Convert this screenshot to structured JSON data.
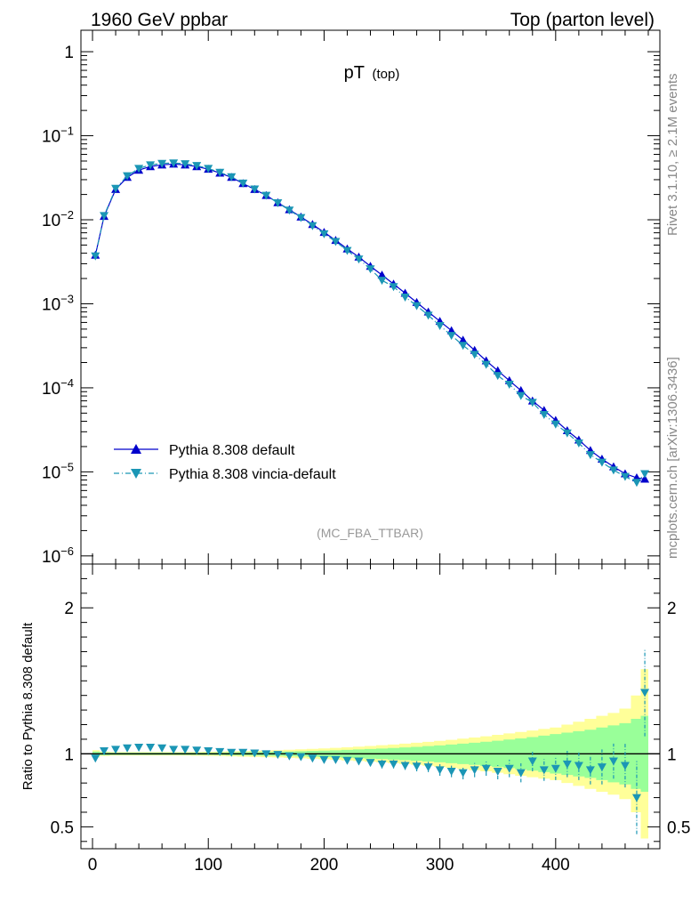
{
  "header": {
    "left": "1960 GeV ppbar",
    "right": "Top (parton level)"
  },
  "side_text": {
    "rivet": "Rivet 3.1.10, ≥ 2.1M events",
    "mcplots": "mcplots.cern.ch [arXiv:1306.3436]"
  },
  "chart_data": {
    "type": "line",
    "title_main": "pT",
    "title_sub": "(top)",
    "analysis_label": "(MC_FBA_TTBAR)",
    "main_panel": {
      "yscale": "log",
      "xlim": [
        -10,
        490
      ],
      "ylim": [
        8e-07,
        1.8
      ],
      "y_ticks": [
        {
          "value": 1,
          "base": "1",
          "exp": ""
        },
        {
          "value": 0.1,
          "base": "10",
          "exp": "−1"
        },
        {
          "value": 0.01,
          "base": "10",
          "exp": "−2"
        },
        {
          "value": 0.001,
          "base": "10",
          "exp": "−3"
        },
        {
          "value": 0.0001,
          "base": "10",
          "exp": "−4"
        },
        {
          "value": 1e-05,
          "base": "10",
          "exp": "−5"
        },
        {
          "value": 1e-06,
          "base": "10",
          "exp": "−6"
        }
      ]
    },
    "ratio_panel": {
      "ylabel": "Ratio to Pythia 8.308 default",
      "ylim": [
        0.35,
        2.3
      ],
      "y_ticks": [
        {
          "value": 2,
          "label": "2"
        },
        {
          "value": 1,
          "label": "1"
        },
        {
          "value": 0.5,
          "label": "0.5"
        }
      ],
      "x_ticks": [
        {
          "value": 0,
          "label": "0"
        },
        {
          "value": 100,
          "label": "100"
        },
        {
          "value": 200,
          "label": "200"
        },
        {
          "value": 300,
          "label": "300"
        },
        {
          "value": 400,
          "label": "400"
        }
      ]
    },
    "x": [
      2.5,
      10,
      20,
      30,
      40,
      50,
      60,
      70,
      80,
      90,
      100,
      110,
      120,
      130,
      140,
      150,
      160,
      170,
      180,
      190,
      200,
      210,
      220,
      230,
      240,
      250,
      260,
      270,
      280,
      290,
      300,
      310,
      320,
      330,
      340,
      350,
      360,
      370,
      380,
      390,
      400,
      410,
      420,
      430,
      440,
      450,
      460,
      470,
      477
    ],
    "series": [
      {
        "name": "Pythia 8.308 default",
        "color": "#0000cc",
        "marker": "triangle-up",
        "line": "solid",
        "values": [
          0.0038,
          0.011,
          0.023,
          0.032,
          0.039,
          0.043,
          0.045,
          0.046,
          0.045,
          0.043,
          0.04,
          0.036,
          0.032,
          0.027,
          0.023,
          0.0195,
          0.016,
          0.0132,
          0.0108,
          0.0088,
          0.0071,
          0.0057,
          0.0045,
          0.0036,
          0.0028,
          0.0022,
          0.00172,
          0.00134,
          0.00104,
          0.0008,
          0.00062,
          0.00048,
          0.00037,
          0.00028,
          0.00021,
          0.00016,
          0.000122,
          9.3e-05,
          7e-05,
          5.4e-05,
          4.1e-05,
          3.1e-05,
          2.4e-05,
          1.8e-05,
          1.42e-05,
          1.15e-05,
          9.5e-06,
          8.5e-06,
          8.2e-06
        ]
      },
      {
        "name": "Pythia 8.308 vincia-default",
        "color": "#1b96b5",
        "marker": "triangle-down",
        "line": "dash-dot",
        "values": [
          0.0037,
          0.0112,
          0.0236,
          0.0333,
          0.0408,
          0.045,
          0.0468,
          0.0474,
          0.0463,
          0.0441,
          0.0408,
          0.0366,
          0.0324,
          0.0273,
          0.0232,
          0.0195,
          0.0159,
          0.013,
          0.0106,
          0.0085,
          0.0068,
          0.0055,
          0.0043,
          0.0034,
          0.0026,
          0.0019,
          0.0016,
          0.0012,
          0.00095,
          0.00073,
          0.00055,
          0.00042,
          0.00032,
          0.00025,
          0.00019,
          0.00014,
          0.00011,
          8.1e-05,
          6.7e-05,
          4.8e-05,
          3.7e-05,
          2.9e-05,
          2.2e-05,
          1.6e-05,
          1.3e-05,
          1.05e-05,
          8.8e-06,
          7.5e-06,
          9.5e-06
        ]
      }
    ],
    "ratio_values": [
      0.97,
      1.02,
      1.03,
      1.04,
      1.045,
      1.045,
      1.04,
      1.03,
      1.03,
      1.025,
      1.02,
      1.015,
      1.01,
      1.01,
      1.005,
      1.0,
      0.995,
      0.985,
      0.98,
      0.97,
      0.96,
      0.96,
      0.955,
      0.95,
      0.94,
      0.93,
      0.93,
      0.92,
      0.915,
      0.91,
      0.89,
      0.88,
      0.87,
      0.89,
      0.9,
      0.88,
      0.9,
      0.87,
      0.95,
      0.89,
      0.9,
      0.93,
      0.92,
      0.89,
      0.91,
      0.95,
      0.92,
      0.7,
      1.42
    ],
    "ratio_errors": [
      0.02,
      0.01,
      0.01,
      0.01,
      0.01,
      0.01,
      0.01,
      0.01,
      0.01,
      0.01,
      0.01,
      0.01,
      0.01,
      0.01,
      0.01,
      0.015,
      0.015,
      0.015,
      0.015,
      0.015,
      0.02,
      0.02,
      0.02,
      0.025,
      0.025,
      0.03,
      0.03,
      0.03,
      0.035,
      0.035,
      0.04,
      0.04,
      0.045,
      0.05,
      0.05,
      0.055,
      0.06,
      0.065,
      0.07,
      0.075,
      0.08,
      0.09,
      0.1,
      0.1,
      0.12,
      0.12,
      0.15,
      0.25,
      0.3
    ],
    "band_green": [
      0.015,
      0.01,
      0.008,
      0.008,
      0.008,
      0.008,
      0.008,
      0.008,
      0.008,
      0.008,
      0.008,
      0.009,
      0.01,
      0.011,
      0.012,
      0.013,
      0.014,
      0.016,
      0.018,
      0.02,
      0.022,
      0.024,
      0.027,
      0.03,
      0.033,
      0.036,
      0.04,
      0.044,
      0.048,
      0.053,
      0.058,
      0.064,
      0.07,
      0.076,
      0.083,
      0.09,
      0.098,
      0.106,
      0.115,
      0.125,
      0.135,
      0.145,
      0.155,
      0.165,
      0.18,
      0.195,
      0.21,
      0.24,
      0.26
    ],
    "band_yellow": [
      0.025,
      0.015,
      0.012,
      0.012,
      0.012,
      0.012,
      0.012,
      0.012,
      0.012,
      0.013,
      0.014,
      0.015,
      0.017,
      0.019,
      0.021,
      0.023,
      0.025,
      0.028,
      0.031,
      0.034,
      0.037,
      0.041,
      0.045,
      0.049,
      0.054,
      0.059,
      0.064,
      0.07,
      0.076,
      0.082,
      0.089,
      0.096,
      0.104,
      0.112,
      0.12,
      0.13,
      0.14,
      0.15,
      0.16,
      0.17,
      0.18,
      0.2,
      0.22,
      0.24,
      0.26,
      0.28,
      0.31,
      0.4,
      0.58
    ]
  }
}
